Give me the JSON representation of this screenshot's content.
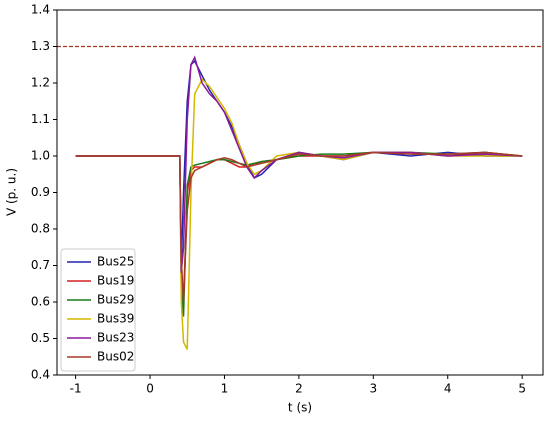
{
  "chart_data": {
    "type": "line",
    "xlabel": "t (s)",
    "ylabel": "V (p. u.)",
    "x": [
      -1,
      0.4,
      0.42,
      0.45,
      0.5,
      0.55,
      0.6,
      0.7,
      0.8,
      0.9,
      1.0,
      1.1,
      1.2,
      1.3,
      1.4,
      1.5,
      1.7,
      2.0,
      2.3,
      2.6,
      3.0,
      3.5,
      4.0,
      4.5,
      5.0
    ],
    "series": [
      {
        "name": "Bus25",
        "color": "#2424b0",
        "values": [
          1,
          1,
          0.7,
          0.9,
          1.15,
          1.25,
          1.26,
          1.22,
          1.18,
          1.15,
          1.12,
          1.08,
          1.03,
          0.98,
          0.94,
          0.95,
          0.99,
          1.01,
          1.0,
          0.99,
          1.01,
          1.0,
          1.01,
          1.0,
          1.0
        ]
      },
      {
        "name": "Bus19",
        "color": "#d62020",
        "values": [
          1,
          1,
          0.7,
          0.6,
          0.9,
          0.96,
          0.97,
          0.97,
          0.98,
          0.99,
          0.99,
          0.98,
          0.97,
          0.97,
          0.98,
          0.98,
          0.99,
          1.0,
          1.0,
          1.0,
          1.01,
          1.01,
          1.0,
          1.01,
          1.0
        ]
      },
      {
        "name": "Bus29",
        "color": "#1a7a1a",
        "values": [
          1,
          1,
          0.65,
          0.56,
          0.92,
          0.97,
          0.975,
          0.98,
          0.985,
          0.99,
          0.99,
          0.985,
          0.98,
          0.975,
          0.98,
          0.985,
          0.99,
          1.0,
          1.005,
          1.005,
          1.01,
          1.01,
          1.005,
          1.01,
          1.0
        ]
      },
      {
        "name": "Bus39",
        "color": "#d4b800",
        "values": [
          1,
          1,
          0.6,
          0.49,
          0.47,
          0.9,
          1.17,
          1.21,
          1.19,
          1.16,
          1.13,
          1.09,
          1.03,
          0.98,
          0.95,
          0.96,
          1.0,
          1.01,
          1.0,
          0.99,
          1.01,
          1.01,
          1.0,
          1.0,
          1.0
        ]
      },
      {
        "name": "Bus23",
        "color": "#8b1a9b",
        "values": [
          1,
          1,
          0.68,
          0.75,
          1.1,
          1.25,
          1.27,
          1.2,
          1.17,
          1.15,
          1.12,
          1.07,
          1.02,
          0.97,
          0.94,
          0.96,
          0.99,
          1.01,
          1.0,
          0.995,
          1.01,
          1.01,
          1.0,
          1.005,
          1.0
        ]
      },
      {
        "name": "Bus02",
        "color": "#a83a28",
        "values": [
          1,
          1,
          0.72,
          0.6,
          0.85,
          0.94,
          0.96,
          0.97,
          0.98,
          0.99,
          0.995,
          0.99,
          0.98,
          0.97,
          0.975,
          0.98,
          0.99,
          1.005,
          1.0,
          1.0,
          1.01,
          1.005,
          1.005,
          1.01,
          1.0
        ]
      }
    ],
    "hline": {
      "value": 1.3,
      "color": "#a0341f"
    },
    "xlim": [
      -1.25,
      5.28
    ],
    "ylim": [
      0.4,
      1.4
    ],
    "xticks": [
      -1,
      0,
      1,
      2,
      3,
      4,
      5
    ],
    "yticks": [
      0.4,
      0.5,
      0.6,
      0.7,
      0.8,
      0.9,
      {
        "value": 1,
        "label": "1.0"
      },
      1.1,
      1.2,
      1.3,
      1.4
    ],
    "legend": "lower left"
  }
}
